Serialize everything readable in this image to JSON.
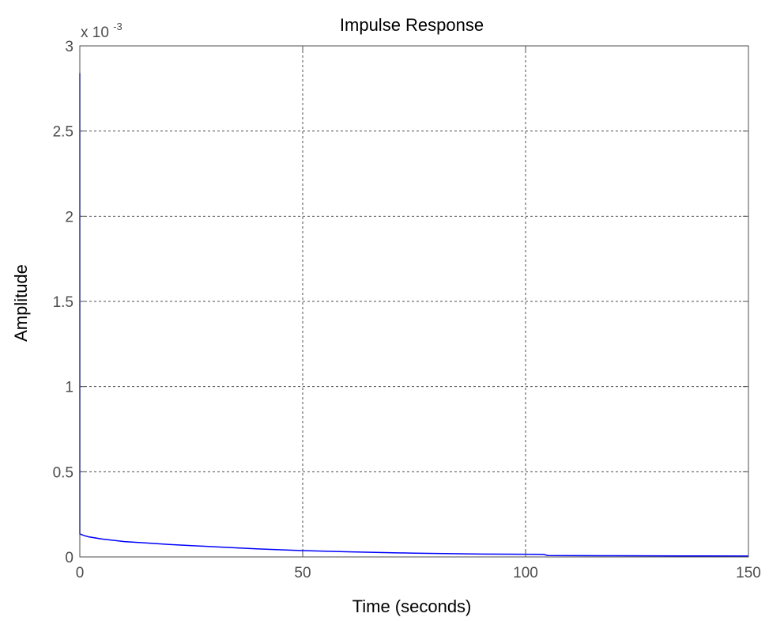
{
  "chart_data": {
    "type": "line",
    "title": "Impulse Response",
    "xlabel": "Time (seconds)",
    "ylabel": "Amplitude",
    "xlim": [
      0,
      150
    ],
    "ylim": [
      0,
      3
    ],
    "xticks": [
      "0",
      "50",
      "100",
      "150"
    ],
    "yticks": [
      "0",
      "0.5",
      "1",
      "1.5",
      "2",
      "2.5",
      "3"
    ],
    "y_exponent": {
      "base": "x 10",
      "power": "-3"
    },
    "grid": true,
    "grid_style": "dashed",
    "series": [
      {
        "color": "#0000ff",
        "x": [
          0,
          0,
          1,
          2,
          5,
          10,
          15,
          20,
          30,
          40,
          50,
          60,
          75,
          90,
          104,
          105,
          120,
          135,
          150
        ],
        "y": [
          2.84,
          0.135,
          0.125,
          0.118,
          0.105,
          0.09,
          0.082,
          0.073,
          0.06,
          0.047,
          0.037,
          0.03,
          0.022,
          0.017,
          0.015,
          0.008,
          0.007,
          0.006,
          0.005
        ]
      }
    ]
  }
}
